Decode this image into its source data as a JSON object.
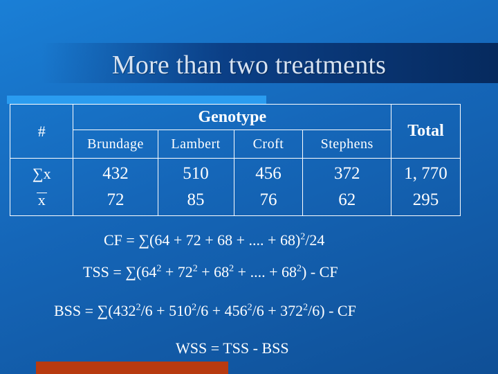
{
  "title": "More than two treatments",
  "table": {
    "hash": "#",
    "group_header": "Genotype",
    "total_header": "Total",
    "columns": [
      "Brundage",
      "Lambert",
      "Croft",
      "Stephens"
    ],
    "row_labels": [
      "∑x",
      "x"
    ],
    "sums": [
      "432",
      "510",
      "456",
      "372"
    ],
    "means": [
      "72",
      "85",
      "76",
      "62"
    ],
    "total_sum": "1, 770",
    "total_mean": "295"
  },
  "formulas": {
    "cf": {
      "a": "CF = ∑(64 + 72 + 68 + .... + 68)",
      "sup1": "2",
      "b": "/24"
    },
    "tss": {
      "a": "TSS = ∑(64",
      "s1": "2",
      "b": " + 72",
      "s2": "2",
      "c": " + 68",
      "s3": "2",
      "d": " + .... + 68",
      "s4": "2",
      "e": ") - CF"
    },
    "bss": {
      "a": "BSS = ∑(432",
      "s1": "2",
      "b": "/6 + 510",
      "s2": "2",
      "c": "/6 + 456",
      "s3": "2",
      "d": "/6 + 372",
      "s4": "2",
      "e": "/6) - CF"
    },
    "wss": "WSS = TSS - BSS"
  },
  "colors": {
    "background": "#1566b8",
    "accent_light": "#2a9cf0",
    "accent_dark": "#062a5e",
    "accent_orange": "#b83a10"
  }
}
